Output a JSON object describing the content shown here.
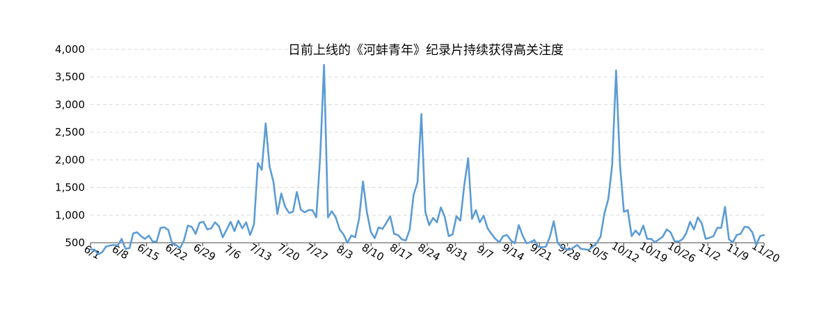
{
  "chart_data": {
    "type": "line",
    "title": "日前上线的《河蚌青年》纪录片持续获得高关注度",
    "xlabel": "",
    "ylabel": "",
    "ylim": [
      500,
      4000
    ],
    "yticks": [
      "500",
      "1,000",
      "1,500",
      "2,000",
      "2,500",
      "3,000",
      "3,500",
      "4,000"
    ],
    "grid": true,
    "legend": "none",
    "x_tick_labels": [
      "6/1",
      "6/8",
      "6/15",
      "6/22",
      "6/29",
      "7/6",
      "7/13",
      "7/20",
      "7/27",
      "8/3",
      "8/10",
      "8/17",
      "8/24",
      "8/31",
      "9/7",
      "9/14",
      "9/21",
      "9/28",
      "10/5",
      "10/12",
      "10/19",
      "10/26",
      "11/2",
      "11/9",
      "11/20"
    ],
    "x_start": "6/1",
    "x_end": "11/20",
    "series": [
      {
        "color": "#5b9bd5",
        "values": [
          380,
          375,
          290,
          330,
          430,
          450,
          460,
          450,
          570,
          390,
          400,
          670,
          690,
          620,
          570,
          630,
          520,
          520,
          770,
          780,
          730,
          480,
          460,
          400,
          540,
          810,
          790,
          660,
          860,
          880,
          740,
          760,
          870,
          800,
          600,
          740,
          880,
          710,
          900,
          760,
          870,
          640,
          830,
          1940,
          1820,
          2660,
          1880,
          1600,
          1020,
          1390,
          1150,
          1040,
          1060,
          1420,
          1100,
          1050,
          1090,
          1090,
          960,
          2050,
          3720,
          960,
          1070,
          960,
          740,
          650,
          500,
          630,
          600,
          940,
          1610,
          1050,
          700,
          580,
          780,
          750,
          860,
          980,
          660,
          640,
          560,
          540,
          740,
          1370,
          1590,
          2830,
          1060,
          820,
          950,
          870,
          1140,
          970,
          620,
          650,
          980,
          900,
          1540,
          2030,
          930,
          1090,
          870,
          990,
          760,
          660,
          570,
          510,
          620,
          640,
          540,
          490,
          820,
          630,
          490,
          510,
          550,
          430,
          420,
          430,
          610,
          890,
          500,
          420,
          390,
          370,
          410,
          460,
          390,
          380,
          370,
          430,
          490,
          610,
          1030,
          1290,
          1910,
          3620,
          1910,
          1060,
          1090,
          620,
          720,
          640,
          810,
          570,
          570,
          510,
          560,
          610,
          740,
          690,
          530,
          520,
          560,
          670,
          880,
          740,
          960,
          850,
          570,
          590,
          620,
          770,
          770,
          1150,
          560,
          510,
          640,
          660,
          790,
          780,
          690,
          460,
          620,
          640
        ]
      }
    ]
  }
}
